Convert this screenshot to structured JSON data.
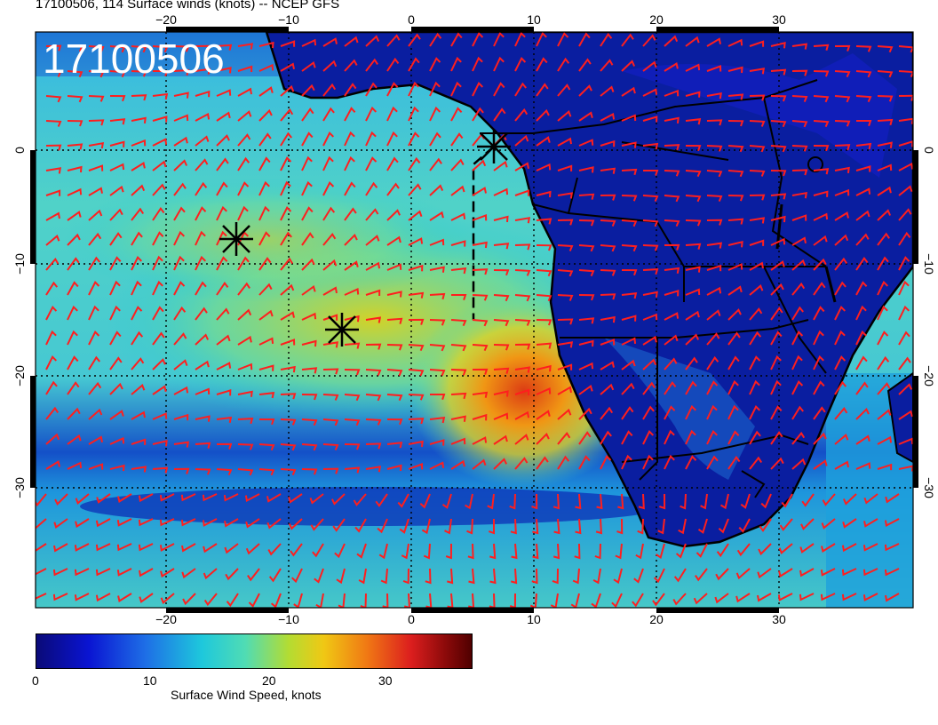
{
  "title": "17100506, 114 Surface winds (knots) -- NCEP GFS",
  "stamp": "17100506",
  "x_ticks": [
    "−20",
    "−10",
    "0",
    "10",
    "20",
    "30"
  ],
  "y_ticks": [
    "0",
    "−10",
    "−20",
    "−30"
  ],
  "colorbar": {
    "label": "Surface Wind Speed, knots",
    "ticks": [
      "0",
      "10",
      "20",
      "30"
    ]
  },
  "colors": {
    "ocean_low": "#0a14c8",
    "ocean_mid": "#1ec8dc",
    "ocean_high": "#f07814",
    "barb": "#ff1e1e"
  },
  "markers": [
    {
      "name": "marker-star-1",
      "lon": 6.5,
      "lat": 0.5
    },
    {
      "name": "marker-star-2",
      "lon": -14.5,
      "lat": -8
    },
    {
      "name": "marker-star-3",
      "lon": -6,
      "lat": -16
    }
  ]
}
